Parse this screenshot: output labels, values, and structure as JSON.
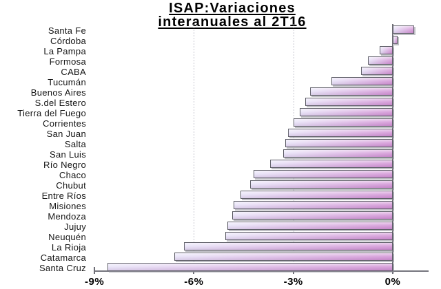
{
  "title": {
    "line1": "ISAP:Variaciones",
    "line2": "interanuales al 2T16"
  },
  "chart_data": {
    "type": "bar",
    "orientation": "horizontal",
    "title": "ISAP:Variaciones interanuales al 2T16",
    "xlabel": "",
    "ylabel": "",
    "unit": "%",
    "xlim": [
      -9,
      1.1
    ],
    "grid": "vertical",
    "legend": "none",
    "categories": [
      "Santa Fe",
      "Córdoba",
      "La Pampa",
      "Formosa",
      "CABA",
      "Tucumán",
      "Buenos Aires",
      "S.del Estero",
      "Tierra del Fuego",
      "Corrientes",
      "San Juan",
      "Salta",
      "San Luis",
      "Río Negro",
      "Chaco",
      "Chubut",
      "Entre Ríos",
      "Misiones",
      "Mendoza",
      "Jujuy",
      "Neuquén",
      "La Rioja",
      "Catamarca",
      "Santa Cruz"
    ],
    "values": [
      0.65,
      0.15,
      -0.4,
      -0.75,
      -0.95,
      -1.85,
      -2.5,
      -2.65,
      -2.8,
      -3.0,
      -3.15,
      -3.25,
      -3.3,
      -3.7,
      -4.2,
      -4.3,
      -4.6,
      -4.8,
      -4.85,
      -5.0,
      -5.05,
      -6.3,
      -6.6,
      -8.6
    ],
    "x_ticks": [
      "-9%",
      "-6%",
      "-3%",
      "0%"
    ],
    "x_tick_values": [
      -9,
      -6,
      -3,
      0
    ],
    "gridline_values": [
      -6,
      -3
    ],
    "colors": {
      "bar_gradient_start": "#e7e2f8",
      "bar_gradient_end": "#d190d4",
      "bar_border": "#5f5f68",
      "bar_shadow": "#8a8a96",
      "axis": "#75757d",
      "zero_line": "#6e6e76",
      "gridline": "#c6c6cf",
      "background": "#ffffff",
      "text": "#000000"
    }
  }
}
